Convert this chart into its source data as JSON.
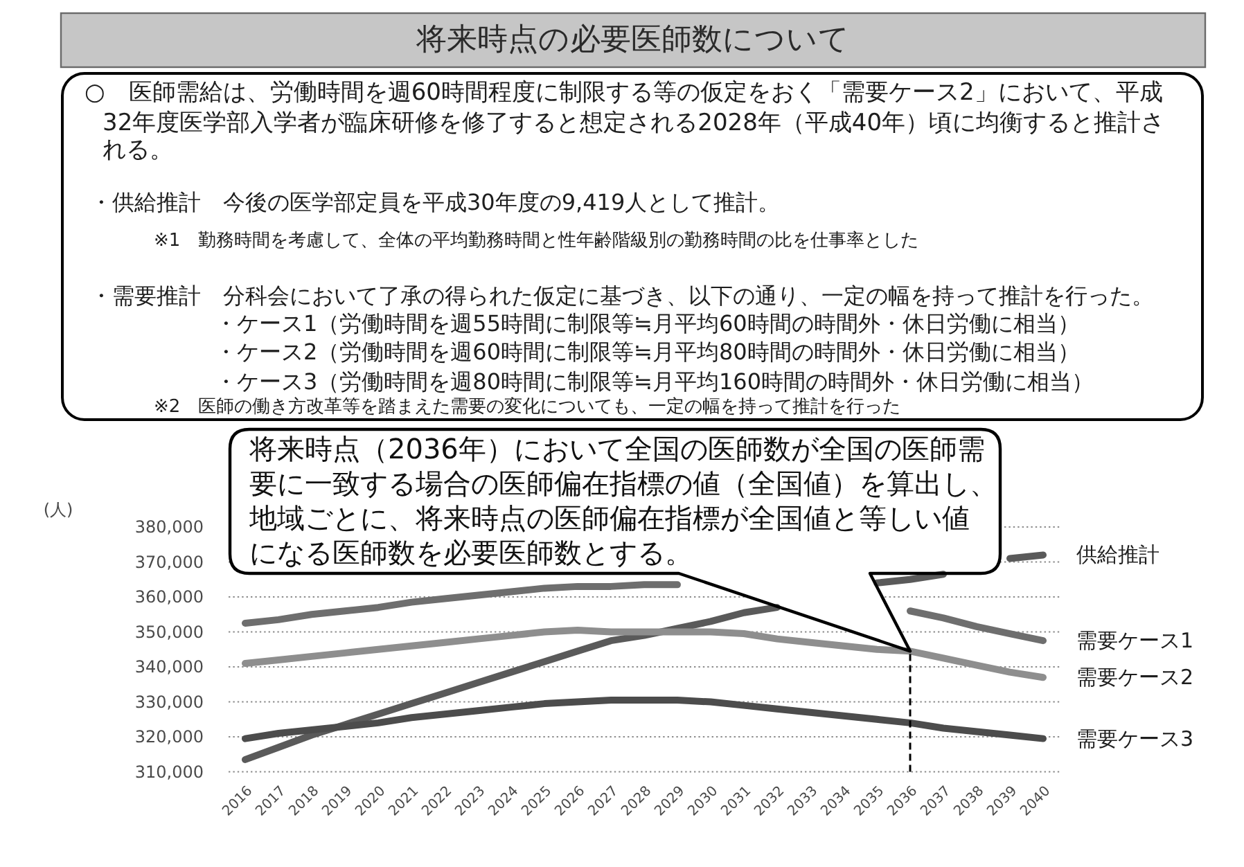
{
  "chart_data": {
    "type": "line",
    "title": "将来時点の必要医師数について",
    "ylabel": "(人)",
    "annotations": [
      "○　医師需給は、労働時間を週60時間程度に制限する等の仮定をおく「需要ケース2」において、平成",
      "32年度医学部入学者が臨床研修を修了すると想定される2028年（平成40年）頃に均衡すると推計さ",
      "れる。",
      "・供給推計　今後の医学部定員を平成30年度の9,419人として推計。",
      "※1　勤務時間を考慮して、全体の平均勤務時間と性年齢階級別の勤務時間の比を仕事率とした",
      "・需要推計　分科会において了承の得られた仮定に基づき、以下の通り、一定の幅を持って推計を行った。",
      "・ケース1（労働時間を週55時間に制限等≒月平均60時間の時間外・休日労働に相当）",
      "・ケース2（労働時間を週60時間に制限等≒月平均80時間の時間外・休日労働に相当）",
      "・ケース3（労働時間を週80時間に制限等≒月平均160時間の時間外・休日労働に相当）",
      "※2　医師の働き方改革等を踏まえた需要の変化についても、一定の幅を持って推計を行った",
      {
        "text": "将来時点（2036年）において全国の医師数が全国の医師需要に一致する場合の医師偏在指標の値（全国値）を算出し、地域ごとに、将来時点の医師偏在指標が全国値と等しい値になる医師数を必要医師数とする。",
        "x": "2036",
        "y": 344500
      }
    ],
    "categories": [
      "2016",
      "2017",
      "2018",
      "2019",
      "2020",
      "2021",
      "2022",
      "2023",
      "2024",
      "2025",
      "2026",
      "2027",
      "2028",
      "2029",
      "2030",
      "2031",
      "2032",
      "2033",
      "2034",
      "2035",
      "2036",
      "2037",
      "2038",
      "2039",
      "2040"
    ],
    "series": [
      {
        "name": "供給推計",
        "color": "#5a5a5a",
        "values": [
          313500,
          317000,
          320500,
          323500,
          326500,
          329500,
          332500,
          335500,
          338500,
          341500,
          344500,
          347500,
          349000,
          351000,
          353000,
          355500,
          357000,
          null,
          null,
          364000,
          365000,
          366500,
          null,
          371000,
          372000
        ]
      },
      {
        "name": "需要ケース1",
        "color": "#6e6e6e",
        "values": [
          352500,
          353500,
          355000,
          356000,
          357000,
          358500,
          359500,
          360500,
          361500,
          362500,
          363000,
          363000,
          363500,
          363500,
          null,
          null,
          null,
          null,
          null,
          null,
          356000,
          354000,
          351500,
          349500,
          347500
        ]
      },
      {
        "name": "需要ケース2",
        "color": "#8e8e8e",
        "values": [
          341000,
          342000,
          343000,
          344000,
          345000,
          346000,
          347000,
          348000,
          349000,
          350000,
          350500,
          350000,
          350000,
          350000,
          350000,
          349500,
          348000,
          347000,
          346000,
          345000,
          344500,
          342500,
          340500,
          338500,
          337000
        ]
      },
      {
        "name": "需要ケース3",
        "color": "#4c4c4c",
        "values": [
          319500,
          321000,
          322000,
          323000,
          324000,
          325500,
          326500,
          327500,
          328500,
          329500,
          330000,
          330500,
          330500,
          330500,
          330000,
          329000,
          328000,
          327000,
          326000,
          325000,
          324000,
          322500,
          321500,
          320500,
          319500
        ]
      }
    ],
    "ylim": [
      310000,
      380000
    ],
    "yticks": [
      {
        "value": 310000,
        "label": "310,000"
      },
      {
        "value": 320000,
        "label": "320,000"
      },
      {
        "value": 330000,
        "label": "330,000"
      },
      {
        "value": 340000,
        "label": "340,000"
      },
      {
        "value": 350000,
        "label": "350,000"
      },
      {
        "value": 360000,
        "label": "360,000"
      },
      {
        "value": 370000,
        "label": "370,000"
      },
      {
        "value": 380000,
        "label": "380,000"
      }
    ],
    "grid": "y",
    "ref_lines": [
      {
        "axis": "x",
        "value": "2036",
        "color": "#000000",
        "line_style": "dashed"
      }
    ]
  }
}
